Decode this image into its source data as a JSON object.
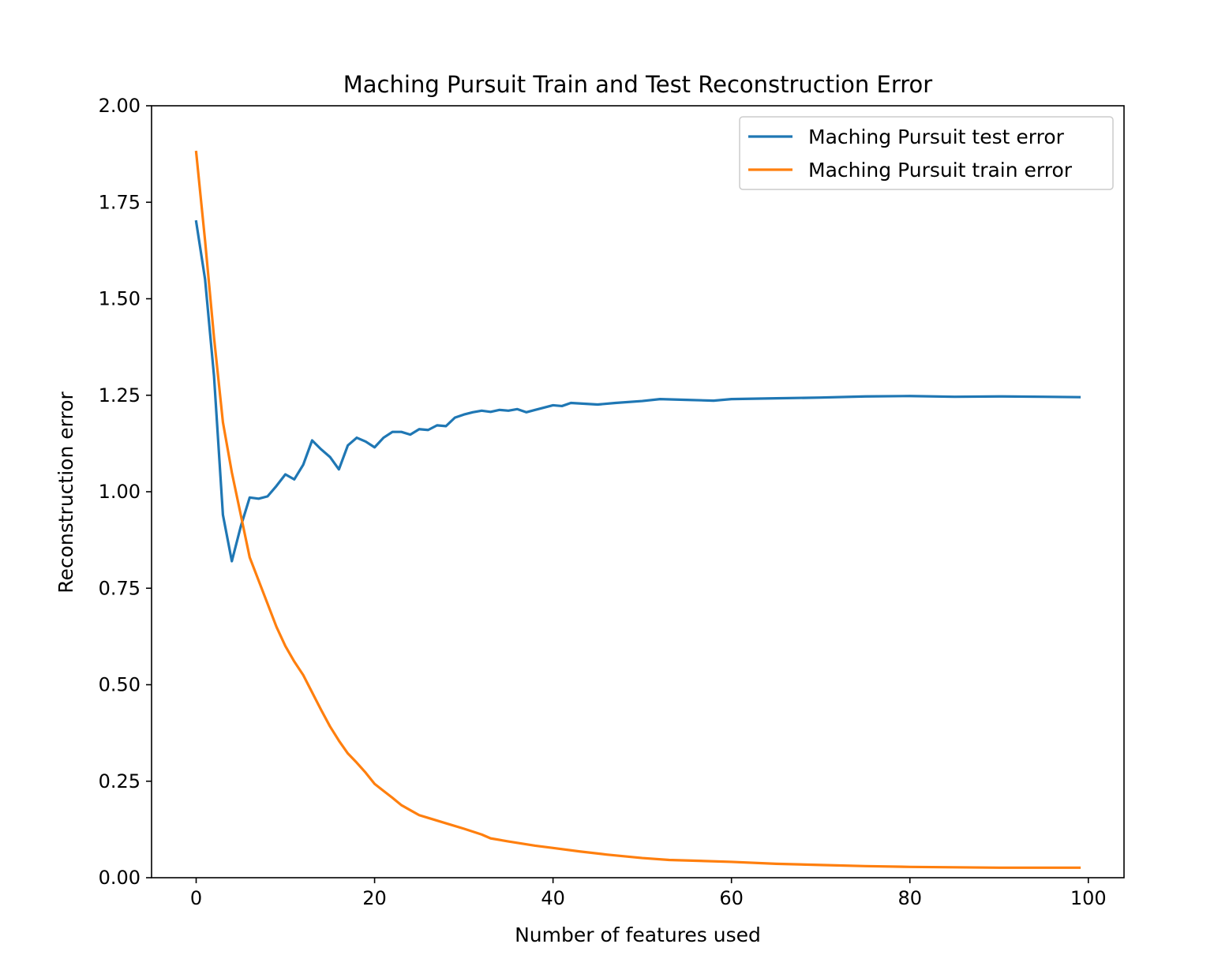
{
  "chart_data": {
    "type": "line",
    "title": "Maching Pursuit Train and Test Reconstruction Error",
    "xlabel": "Number of features used",
    "ylabel": "Reconstruction error",
    "xlim": [
      -5,
      104
    ],
    "ylim": [
      0,
      2
    ],
    "xticks": [
      0,
      20,
      40,
      60,
      80,
      100
    ],
    "xtick_labels": [
      "0",
      "20",
      "40",
      "60",
      "80",
      "100"
    ],
    "yticks": [
      0,
      0.25,
      0.5,
      0.75,
      1.0,
      1.25,
      1.5,
      1.75,
      2.0
    ],
    "ytick_labels": [
      "0.00",
      "0.25",
      "0.50",
      "0.75",
      "1.00",
      "1.25",
      "1.50",
      "1.75",
      "2.00"
    ],
    "grid": false,
    "legend_position": "top-right",
    "series": [
      {
        "name": "Maching Pursuit test error",
        "color": "#1f77b4",
        "points": [
          [
            0,
            1.7
          ],
          [
            1,
            1.55
          ],
          [
            2,
            1.3
          ],
          [
            3,
            0.94
          ],
          [
            4,
            0.82
          ],
          [
            5,
            0.91
          ],
          [
            6,
            0.985
          ],
          [
            7,
            0.982
          ],
          [
            8,
            0.988
          ],
          [
            9,
            1.015
          ],
          [
            10,
            1.045
          ],
          [
            11,
            1.032
          ],
          [
            12,
            1.07
          ],
          [
            13,
            1.133
          ],
          [
            14,
            1.11
          ],
          [
            15,
            1.09
          ],
          [
            16,
            1.058
          ],
          [
            17,
            1.12
          ],
          [
            18,
            1.14
          ],
          [
            19,
            1.13
          ],
          [
            20,
            1.115
          ],
          [
            21,
            1.14
          ],
          [
            22,
            1.155
          ],
          [
            23,
            1.155
          ],
          [
            24,
            1.148
          ],
          [
            25,
            1.162
          ],
          [
            26,
            1.16
          ],
          [
            27,
            1.172
          ],
          [
            28,
            1.17
          ],
          [
            29,
            1.192
          ],
          [
            30,
            1.2
          ],
          [
            31,
            1.206
          ],
          [
            32,
            1.21
          ],
          [
            33,
            1.207
          ],
          [
            34,
            1.212
          ],
          [
            35,
            1.21
          ],
          [
            36,
            1.214
          ],
          [
            37,
            1.206
          ],
          [
            38,
            1.212
          ],
          [
            40,
            1.224
          ],
          [
            41,
            1.222
          ],
          [
            42,
            1.23
          ],
          [
            45,
            1.226
          ],
          [
            47,
            1.23
          ],
          [
            50,
            1.235
          ],
          [
            52,
            1.24
          ],
          [
            55,
            1.238
          ],
          [
            58,
            1.236
          ],
          [
            60,
            1.24
          ],
          [
            65,
            1.242
          ],
          [
            70,
            1.244
          ],
          [
            75,
            1.247
          ],
          [
            80,
            1.248
          ],
          [
            85,
            1.246
          ],
          [
            90,
            1.247
          ],
          [
            95,
            1.246
          ],
          [
            99,
            1.245
          ]
        ]
      },
      {
        "name": "Maching Pursuit train error",
        "color": "#ff7f0e",
        "points": [
          [
            0,
            1.88
          ],
          [
            1,
            1.65
          ],
          [
            2,
            1.4
          ],
          [
            3,
            1.18
          ],
          [
            4,
            1.05
          ],
          [
            5,
            0.94
          ],
          [
            6,
            0.83
          ],
          [
            7,
            0.77
          ],
          [
            8,
            0.71
          ],
          [
            9,
            0.65
          ],
          [
            10,
            0.6
          ],
          [
            11,
            0.56
          ],
          [
            12,
            0.525
          ],
          [
            13,
            0.48
          ],
          [
            14,
            0.435
          ],
          [
            15,
            0.392
          ],
          [
            16,
            0.355
          ],
          [
            17,
            0.322
          ],
          [
            18,
            0.298
          ],
          [
            19,
            0.272
          ],
          [
            20,
            0.243
          ],
          [
            21,
            0.225
          ],
          [
            22,
            0.207
          ],
          [
            23,
            0.188
          ],
          [
            24,
            0.175
          ],
          [
            25,
            0.162
          ],
          [
            26,
            0.155
          ],
          [
            28,
            0.141
          ],
          [
            30,
            0.127
          ],
          [
            32,
            0.112
          ],
          [
            33,
            0.102
          ],
          [
            35,
            0.094
          ],
          [
            38,
            0.083
          ],
          [
            40,
            0.077
          ],
          [
            43,
            0.068
          ],
          [
            46,
            0.06
          ],
          [
            50,
            0.051
          ],
          [
            53,
            0.046
          ],
          [
            56,
            0.044
          ],
          [
            60,
            0.041
          ],
          [
            65,
            0.036
          ],
          [
            70,
            0.033
          ],
          [
            75,
            0.03
          ],
          [
            80,
            0.028
          ],
          [
            85,
            0.027
          ],
          [
            90,
            0.026
          ],
          [
            95,
            0.026
          ],
          [
            99,
            0.026
          ]
        ]
      }
    ]
  }
}
